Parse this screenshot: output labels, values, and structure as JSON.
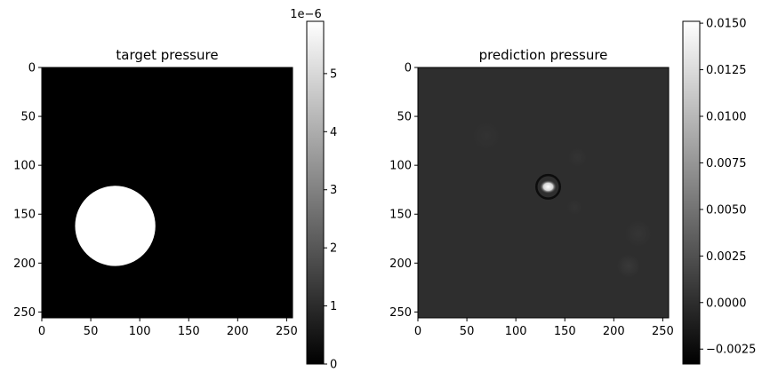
{
  "chart_data": [
    {
      "type": "heatmap",
      "title": "target pressure",
      "xlabel": "",
      "ylabel": "",
      "xlim": [
        0,
        256
      ],
      "ylim": [
        256,
        0
      ],
      "xticks": [
        "0",
        "50",
        "100",
        "150",
        "200",
        "250"
      ],
      "yticks": [
        "0",
        "50",
        "100",
        "150",
        "200",
        "250"
      ],
      "colormap": "gray",
      "background_value": 0,
      "features": [
        {
          "shape": "disk",
          "center_x": 75,
          "center_y": 162,
          "radius": 41,
          "value": 5.9e-06
        }
      ],
      "colorbar": {
        "range": [
          0,
          5.9e-06
        ],
        "offset_label": "1e−6",
        "ticks": [
          "0",
          "1",
          "2",
          "3",
          "4",
          "5"
        ],
        "tick_values": [
          0,
          1e-06,
          2e-06,
          3e-06,
          4e-06,
          5e-06
        ]
      }
    },
    {
      "type": "heatmap",
      "title": "prediction pressure",
      "xlabel": "",
      "ylabel": "",
      "xlim": [
        0,
        256
      ],
      "ylim": [
        256,
        0
      ],
      "xticks": [
        "0",
        "50",
        "100",
        "150",
        "200",
        "250"
      ],
      "yticks": [
        "0",
        "50",
        "100",
        "150",
        "200",
        "250"
      ],
      "colormap": "gray",
      "background_value": 0.0,
      "features": [
        {
          "shape": "blob",
          "center_x": 133,
          "center_y": 122,
          "radius": 7,
          "value": 0.0151
        },
        {
          "shape": "ring",
          "center_x": 133,
          "center_y": 122,
          "radius": 12,
          "value": -0.0028
        },
        {
          "shape": "haze",
          "center_x": 215,
          "center_y": 203,
          "radius": 12,
          "value": 0.0008
        },
        {
          "shape": "haze",
          "center_x": 225,
          "center_y": 170,
          "radius": 14,
          "value": 0.0005
        },
        {
          "shape": "haze",
          "center_x": 163,
          "center_y": 92,
          "radius": 10,
          "value": 0.0004
        },
        {
          "shape": "haze",
          "center_x": 70,
          "center_y": 70,
          "radius": 15,
          "value": 0.0003
        },
        {
          "shape": "haze",
          "center_x": 160,
          "center_y": 143,
          "radius": 8,
          "value": 0.0004
        }
      ],
      "colorbar": {
        "range": [
          -0.0033,
          0.0151
        ],
        "offset_label": "",
        "ticks": [
          "−0.0025",
          "0.0000",
          "0.0025",
          "0.0050",
          "0.0075",
          "0.0100",
          "0.0125",
          "0.0150"
        ],
        "tick_values": [
          -0.0025,
          0.0,
          0.0025,
          0.005,
          0.0075,
          0.01,
          0.0125,
          0.015
        ]
      }
    }
  ]
}
